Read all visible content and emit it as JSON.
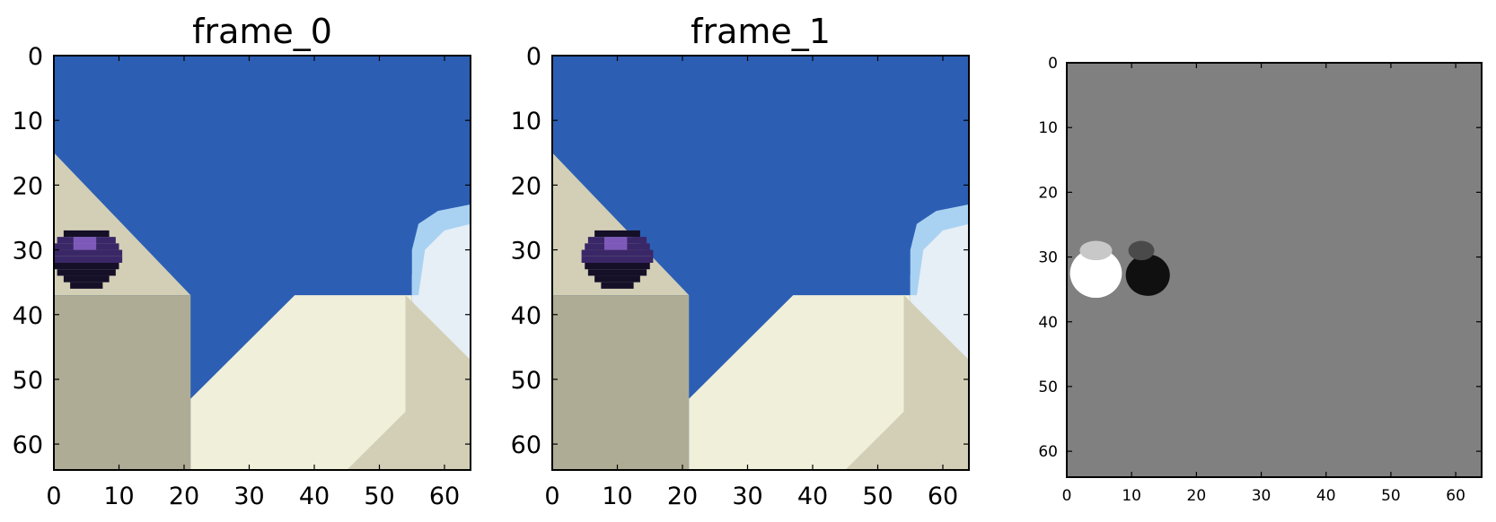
{
  "figure": {
    "panels": [
      {
        "title": "frame_0",
        "ball_x": 5,
        "xticks": [
          "0",
          "10",
          "20",
          "30",
          "40",
          "50",
          "60"
        ],
        "yticks": [
          "0",
          "10",
          "20",
          "30",
          "40",
          "50",
          "60"
        ]
      },
      {
        "title": "frame_1",
        "ball_x": 10,
        "xticks": [
          "0",
          "10",
          "20",
          "30",
          "40",
          "50",
          "60"
        ],
        "yticks": [
          "0",
          "10",
          "20",
          "30",
          "40",
          "50",
          "60"
        ]
      },
      {
        "title": "",
        "xticks": [
          "0",
          "10",
          "20",
          "30",
          "40",
          "50",
          "60"
        ],
        "yticks": [
          "0",
          "10",
          "20",
          "30",
          "40",
          "50",
          "60"
        ]
      }
    ],
    "colors": {
      "sky": "#2c5fb4",
      "slope": "#d2cfb6",
      "wall": "#aeac95",
      "path": "#f0efd9",
      "ice": "#e6eef6",
      "ice_edge": "#a9d2f2",
      "ball_dark": "#150f28",
      "ball_mid": "#3a2767",
      "ball_light": "#8a64c8",
      "diff_bg": "#808080",
      "diff_pos": "#ffffff",
      "diff_neg": "#101010"
    }
  }
}
